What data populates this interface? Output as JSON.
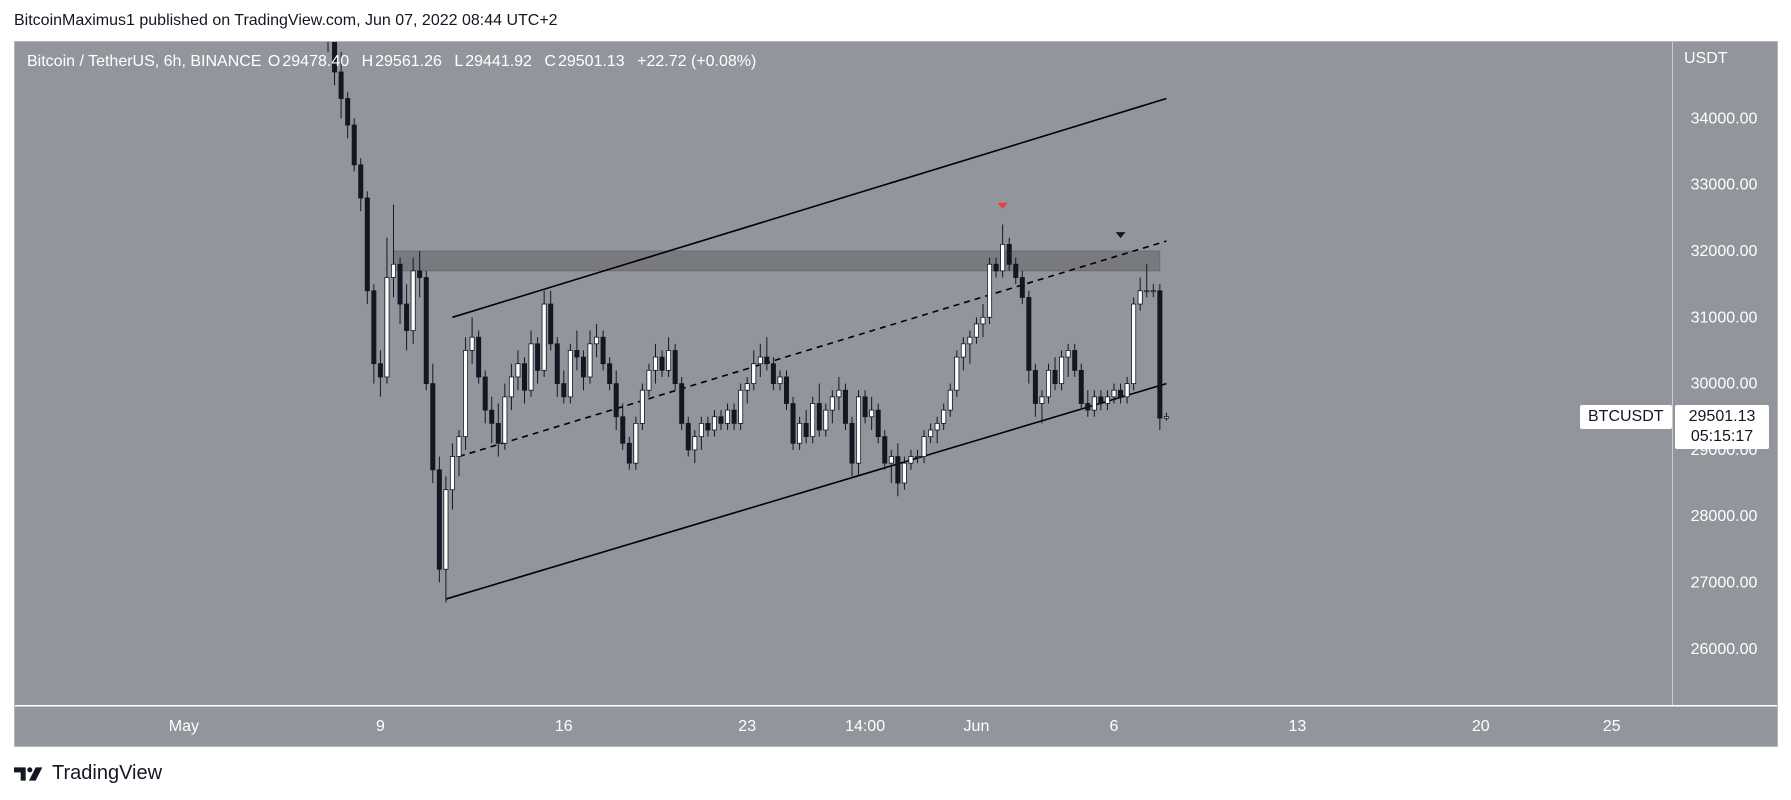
{
  "header": {
    "publisher_text": "BitcoinMaximus1 published on TradingView.com, Jun 07, 2022 08:44 UTC+2"
  },
  "legend": {
    "symbol": "Bitcoin / TetherUS, 6h, BINANCE",
    "open_label": "O",
    "open": "29478.40",
    "high_label": "H",
    "high": "29561.26",
    "low_label": "L",
    "low": "29441.92",
    "close_label": "C",
    "close": "29501.13",
    "change": "+22.72 (+0.08%)"
  },
  "price_axis": {
    "currency": "USDT",
    "ticks": [
      "34000.00",
      "33000.00",
      "32000.00",
      "31000.00",
      "30000.00",
      "29000.00",
      "28000.00",
      "27000.00",
      "26000.00"
    ]
  },
  "time_axis": {
    "ticks": [
      "May",
      "9",
      "16",
      "23",
      "14:00",
      "Jun",
      "6",
      "13",
      "20",
      "25"
    ]
  },
  "last_price": {
    "symbol": "BTCUSDT",
    "price": "29501.13",
    "countdown": "05:15:17"
  },
  "footer": {
    "brand": "TradingView"
  },
  "colors": {
    "plot_bg": "#93959c",
    "up_candle": "#ffffff",
    "down_candle": "#131722",
    "red_marker": "#f23645",
    "zone": "#6f7177"
  },
  "chart_data": {
    "type": "candlestick",
    "title": "Bitcoin / TetherUS, 6h, BINANCE",
    "ylabel": "USDT",
    "ylim": [
      25200,
      35500
    ],
    "x_ticks": [
      {
        "label": "May",
        "idx": -22
      },
      {
        "label": "9",
        "idx": 8
      },
      {
        "label": "16",
        "idx": 36
      },
      {
        "label": "23",
        "idx": 64
      },
      {
        "label": "14:00",
        "idx": 82
      },
      {
        "label": "Jun",
        "idx": 99
      },
      {
        "label": "6",
        "idx": 120
      },
      {
        "label": "13",
        "idx": 148
      },
      {
        "label": "20",
        "idx": 176
      },
      {
        "label": "25",
        "idx": 196
      }
    ],
    "candles": [
      [
        35700,
        36100,
        35000,
        35200
      ],
      [
        35200,
        35600,
        34500,
        34700
      ],
      [
        34700,
        35000,
        34000,
        34300
      ],
      [
        34300,
        34400,
        33700,
        33900
      ],
      [
        33900,
        34000,
        33200,
        33300
      ],
      [
        33300,
        33400,
        32600,
        32800
      ],
      [
        32800,
        32900,
        31200,
        31400
      ],
      [
        31400,
        31500,
        30000,
        30300
      ],
      [
        30300,
        30500,
        29800,
        30100
      ],
      [
        30100,
        32200,
        30000,
        31600
      ],
      [
        31600,
        32700,
        31300,
        31800
      ],
      [
        31800,
        31900,
        30900,
        31200
      ],
      [
        31200,
        31500,
        30500,
        30800
      ],
      [
        30800,
        31900,
        30600,
        31700
      ],
      [
        31700,
        32000,
        31300,
        31600
      ],
      [
        31600,
        31700,
        29900,
        30000
      ],
      [
        30000,
        30300,
        28500,
        28700
      ],
      [
        28700,
        28900,
        27000,
        27200
      ],
      [
        27200,
        28600,
        26700,
        28400
      ],
      [
        28400,
        29100,
        28100,
        28900
      ],
      [
        28900,
        29300,
        28600,
        29200
      ],
      [
        29200,
        30700,
        29000,
        30500
      ],
      [
        30500,
        31000,
        30300,
        30700
      ],
      [
        30700,
        30800,
        30000,
        30100
      ],
      [
        30100,
        30200,
        29400,
        29600
      ],
      [
        29600,
        29800,
        29100,
        29400
      ],
      [
        29400,
        29700,
        28900,
        29100
      ],
      [
        29100,
        30000,
        29000,
        29800
      ],
      [
        29800,
        30300,
        29600,
        30100
      ],
      [
        30100,
        30500,
        29900,
        30300
      ],
      [
        30300,
        30400,
        29700,
        29900
      ],
      [
        29900,
        30800,
        29800,
        30600
      ],
      [
        30600,
        30700,
        30000,
        30200
      ],
      [
        30200,
        31400,
        30100,
        31200
      ],
      [
        31200,
        31400,
        30500,
        30600
      ],
      [
        30600,
        30700,
        29800,
        30000
      ],
      [
        30000,
        30200,
        29700,
        29800
      ],
      [
        29800,
        30600,
        29700,
        30500
      ],
      [
        30500,
        30800,
        30200,
        30400
      ],
      [
        30400,
        30500,
        29900,
        30100
      ],
      [
        30100,
        30800,
        30000,
        30600
      ],
      [
        30600,
        30900,
        30400,
        30700
      ],
      [
        30700,
        30800,
        30200,
        30300
      ],
      [
        30300,
        30400,
        29900,
        30000
      ],
      [
        30000,
        30200,
        29300,
        29500
      ],
      [
        29500,
        29700,
        29000,
        29100
      ],
      [
        29100,
        29200,
        28700,
        28800
      ],
      [
        28800,
        29500,
        28700,
        29400
      ],
      [
        29400,
        30000,
        29300,
        29900
      ],
      [
        29900,
        30300,
        29800,
        30200
      ],
      [
        30200,
        30600,
        30000,
        30400
      ],
      [
        30400,
        30500,
        30100,
        30200
      ],
      [
        30200,
        30700,
        30100,
        30500
      ],
      [
        30500,
        30600,
        29900,
        30000
      ],
      [
        30000,
        30100,
        29300,
        29400
      ],
      [
        29400,
        29500,
        28900,
        29000
      ],
      [
        29000,
        29300,
        28800,
        29200
      ],
      [
        29200,
        29500,
        29000,
        29400
      ],
      [
        29400,
        29500,
        29200,
        29300
      ],
      [
        29300,
        29600,
        29200,
        29500
      ],
      [
        29500,
        29600,
        29300,
        29400
      ],
      [
        29400,
        29700,
        29300,
        29600
      ],
      [
        29600,
        29700,
        29300,
        29400
      ],
      [
        29400,
        30000,
        29300,
        29900
      ],
      [
        29900,
        30100,
        29700,
        30000
      ],
      [
        30000,
        30500,
        29900,
        30300
      ],
      [
        30300,
        30600,
        30100,
        30400
      ],
      [
        30400,
        30700,
        30200,
        30300
      ],
      [
        30300,
        30400,
        29900,
        30000
      ],
      [
        30000,
        30200,
        29900,
        30100
      ],
      [
        30100,
        30200,
        29600,
        29700
      ],
      [
        29700,
        29800,
        29000,
        29100
      ],
      [
        29100,
        29500,
        29000,
        29400
      ],
      [
        29400,
        29600,
        29100,
        29200
      ],
      [
        29200,
        29800,
        29100,
        29700
      ],
      [
        29700,
        30000,
        29200,
        29300
      ],
      [
        29300,
        29700,
        29200,
        29600
      ],
      [
        29600,
        29900,
        29400,
        29800
      ],
      [
        29800,
        30100,
        29600,
        29900
      ],
      [
        29900,
        30000,
        29300,
        29400
      ],
      [
        29400,
        29500,
        28600,
        28800
      ],
      [
        28800,
        29900,
        28600,
        29800
      ],
      [
        29800,
        29900,
        29400,
        29500
      ],
      [
        29500,
        29800,
        29300,
        29600
      ],
      [
        29600,
        29700,
        29100,
        29200
      ],
      [
        29200,
        29300,
        28700,
        28800
      ],
      [
        28800,
        29000,
        28500,
        28900
      ],
      [
        28900,
        29100,
        28300,
        28500
      ],
      [
        28500,
        28900,
        28400,
        28800
      ],
      [
        28800,
        29000,
        28700,
        28900
      ],
      [
        28900,
        29000,
        28800,
        28900
      ],
      [
        28900,
        29300,
        28800,
        29200
      ],
      [
        29200,
        29400,
        29100,
        29300
      ],
      [
        29300,
        29500,
        29100,
        29400
      ],
      [
        29400,
        29700,
        29300,
        29600
      ],
      [
        29600,
        30000,
        29500,
        29900
      ],
      [
        29900,
        30500,
        29800,
        30400
      ],
      [
        30400,
        30700,
        30200,
        30600
      ],
      [
        30600,
        30800,
        30300,
        30700
      ],
      [
        30700,
        31000,
        30600,
        30900
      ],
      [
        30900,
        31200,
        30700,
        31000
      ],
      [
        31000,
        31900,
        30900,
        31800
      ],
      [
        31800,
        31900,
        31600,
        31700
      ],
      [
        31700,
        32400,
        31600,
        32100
      ],
      [
        32100,
        32200,
        31700,
        31800
      ],
      [
        31800,
        31900,
        31500,
        31600
      ],
      [
        31600,
        31700,
        31200,
        31300
      ],
      [
        31300,
        31400,
        30000,
        30200
      ],
      [
        30200,
        30300,
        29500,
        29700
      ],
      [
        29700,
        29900,
        29400,
        29800
      ],
      [
        29800,
        30300,
        29700,
        30200
      ],
      [
        30200,
        30400,
        29900,
        30000
      ],
      [
        30000,
        30500,
        29900,
        30400
      ],
      [
        30400,
        30600,
        30100,
        30500
      ],
      [
        30500,
        30600,
        30100,
        30200
      ],
      [
        30200,
        30300,
        29600,
        29700
      ],
      [
        29700,
        29900,
        29500,
        29600
      ],
      [
        29600,
        29900,
        29500,
        29800
      ],
      [
        29800,
        29900,
        29600,
        29700
      ],
      [
        29700,
        29900,
        29600,
        29800
      ],
      [
        29800,
        30000,
        29700,
        29900
      ],
      [
        29900,
        30000,
        29700,
        29800
      ],
      [
        29800,
        30100,
        29700,
        30000
      ],
      [
        30000,
        31300,
        29900,
        31200
      ],
      [
        31200,
        31600,
        31100,
        31400
      ],
      [
        31400,
        31800,
        31300,
        31400
      ],
      [
        31400,
        31500,
        31300,
        31400
      ],
      [
        31400,
        31500,
        29300,
        29480
      ],
      [
        29478.4,
        29561.26,
        29441.92,
        29501.13
      ]
    ],
    "trendlines": [
      {
        "name": "upper",
        "style": "solid",
        "from": [
          19,
          31000
        ],
        "to": [
          128,
          34300
        ]
      },
      {
        "name": "lower",
        "style": "solid",
        "from": [
          18,
          26750
        ],
        "to": [
          128,
          30000
        ]
      },
      {
        "name": "middle",
        "style": "dashed",
        "from": [
          20,
          28900
        ],
        "to": [
          128,
          32150
        ]
      }
    ],
    "zone": {
      "from_idx": 10,
      "to_idx": 127,
      "low": 31700,
      "high": 32000
    },
    "markers": [
      {
        "idx": 103,
        "price": 32680,
        "color": "#f23645",
        "shape": "down-triangle"
      },
      {
        "idx": 121,
        "price": 32240,
        "color": "#131722",
        "shape": "down-triangle"
      }
    ]
  }
}
